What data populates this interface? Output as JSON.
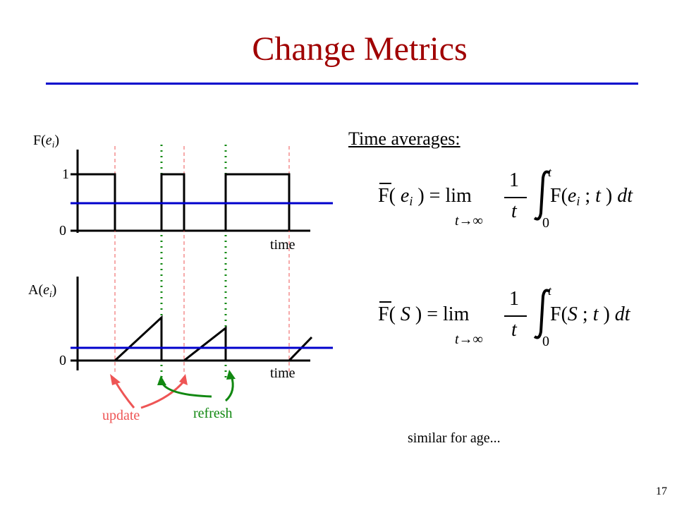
{
  "title": "Change Metrics",
  "graph": {
    "top_label_fn": "F(",
    "top_label_var": "e",
    "top_label_sub": "i",
    "top_label_close": ")",
    "tick_1": "1",
    "tick_0_top": "0",
    "time_top": "time",
    "bottom_label_fn": "A(",
    "bottom_label_var": "e",
    "bottom_label_sub": "i",
    "bottom_label_close": ")",
    "tick_0_bottom": "0",
    "time_bottom": "time",
    "update_label": "update",
    "refresh_label": "refresh"
  },
  "colors": {
    "title": "#a00000",
    "rule": "#0000cc",
    "avg_line": "#0000cc",
    "update": "#ee5555",
    "refresh": "#118811"
  },
  "averages": {
    "heading": "Time averages:",
    "eq1": {
      "lhs_fn": "F(",
      "lhs_var": "e",
      "lhs_sub": "i",
      "lhs_close": ") = lim",
      "limit": "t→∞",
      "frac_num": "1",
      "frac_den": "t",
      "upper": "t",
      "lower": "0",
      "integrand_fn": "F(",
      "integrand_var": "e",
      "integrand_sub": "i",
      "integrand_rest": " ; ",
      "integrand_t": "t",
      "integrand_close": " ) ",
      "dt": "dt"
    },
    "eq2": {
      "lhs_fn": "F(",
      "lhs_var": "S",
      "lhs_close": " ) = lim",
      "limit": "t→∞",
      "frac_num": "1",
      "frac_den": "t",
      "upper": "t",
      "lower": "0",
      "integrand_fn": "F(",
      "integrand_var": "S",
      "integrand_rest": " ; ",
      "integrand_t": "t",
      "integrand_close": " ) ",
      "dt": "dt"
    },
    "note": "similar for age..."
  },
  "page_number": "17"
}
